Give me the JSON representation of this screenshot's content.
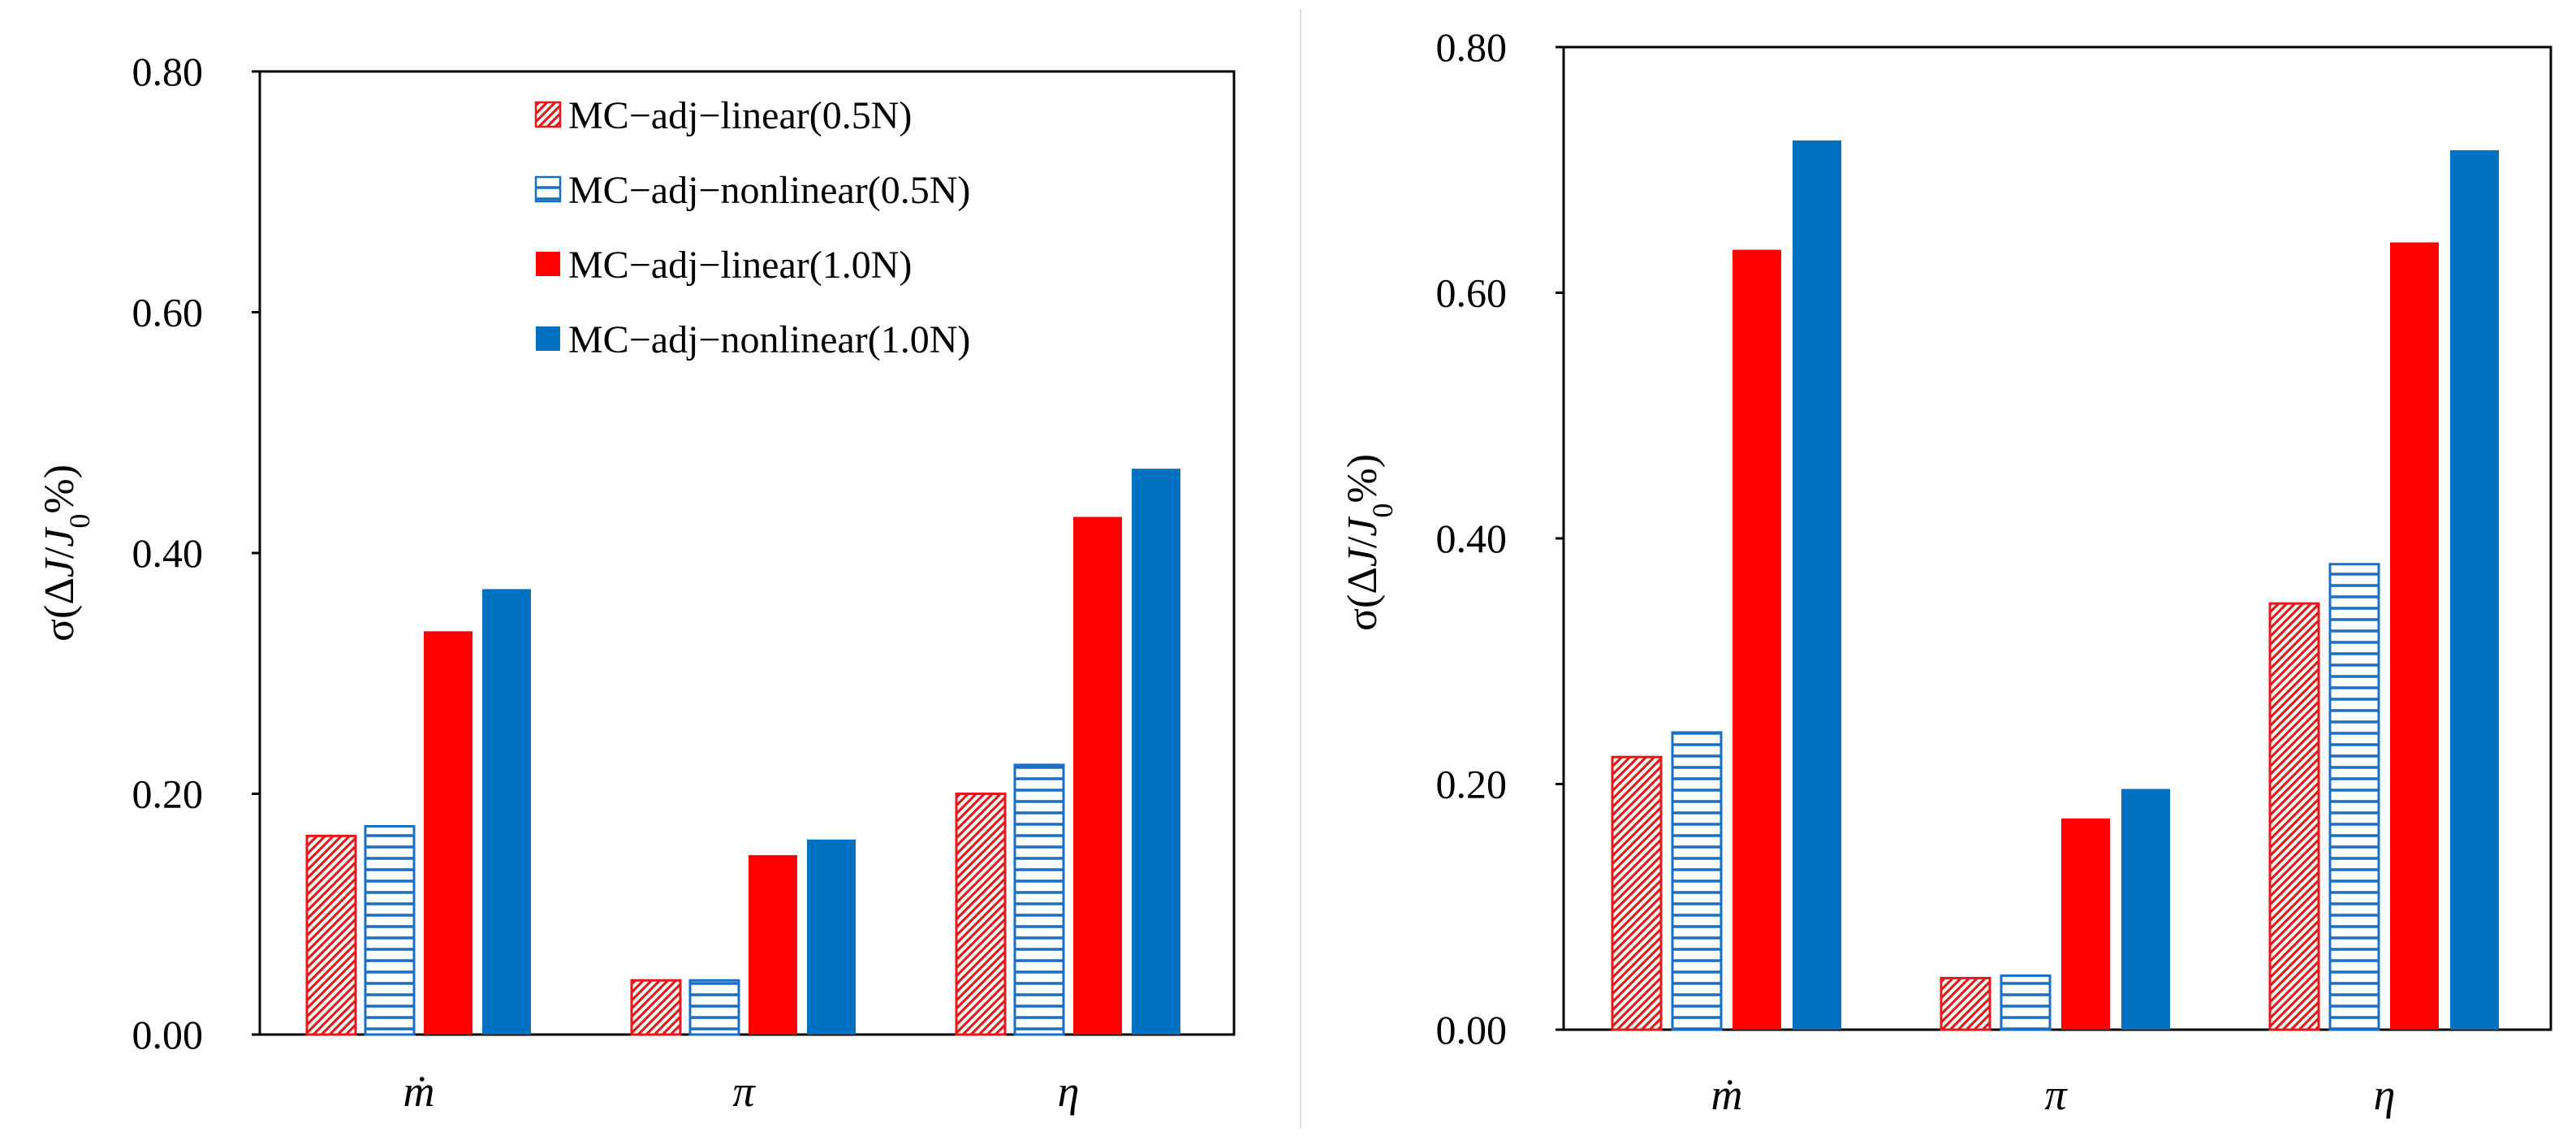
{
  "chart_data": [
    {
      "type": "bar",
      "categories": [
        "ṁ",
        "π",
        "η"
      ],
      "series": [
        {
          "name": "MC−adj−linear(0.5N)",
          "values": [
            0.165,
            0.045,
            0.2
          ],
          "fill": "hatch-red"
        },
        {
          "name": "MC−adj−nonlinear(0.5N)",
          "values": [
            0.173,
            0.045,
            0.224
          ],
          "fill": "stripe-blue"
        },
        {
          "name": "MC−adj−linear(1.0N)",
          "values": [
            0.335,
            0.149,
            0.43
          ],
          "fill": "solid-red"
        },
        {
          "name": "MC−adj−nonlinear(1.0N)",
          "values": [
            0.37,
            0.162,
            0.47
          ],
          "fill": "solid-blue"
        }
      ],
      "ylabel": {
        "prefix": "σ(Δ",
        "j": "J",
        "slash": "/",
        "j0": "J",
        "sub": "0",
        "suffix": "%)"
      },
      "ylim": [
        0,
        0.8
      ],
      "yticks": [
        "0.00",
        "0.20",
        "0.40",
        "0.60",
        "0.80"
      ],
      "legend": "top-right",
      "grid": false
    },
    {
      "type": "bar",
      "categories": [
        "ṁ",
        "π",
        "η"
      ],
      "series": [
        {
          "name": "MC−adj−linear(0.5N)",
          "values": [
            0.222,
            0.042,
            0.347
          ],
          "fill": "hatch-red"
        },
        {
          "name": "MC−adj−nonlinear(0.5N)",
          "values": [
            0.242,
            0.044,
            0.379
          ],
          "fill": "stripe-blue"
        },
        {
          "name": "MC−adj−linear(1.0N)",
          "values": [
            0.635,
            0.172,
            0.641
          ],
          "fill": "solid-red"
        },
        {
          "name": "MC−adj−nonlinear(1.0N)",
          "values": [
            0.724,
            0.196,
            0.716
          ],
          "fill": "solid-blue"
        }
      ],
      "ylabel": {
        "prefix": "σ(Δ",
        "j": "J",
        "slash": "/",
        "j0": "J",
        "sub": "0",
        "suffix": "%)"
      },
      "ylim": [
        0,
        0.8
      ],
      "yticks": [
        "0.00",
        "0.20",
        "0.40",
        "0.60",
        "0.80"
      ],
      "legend": "none",
      "grid": false
    }
  ],
  "colors": {
    "red": "#ff0000",
    "blue": "#0070c0",
    "hatch_red": "#e8181a",
    "stripe_blue": "#1a6fc4"
  }
}
